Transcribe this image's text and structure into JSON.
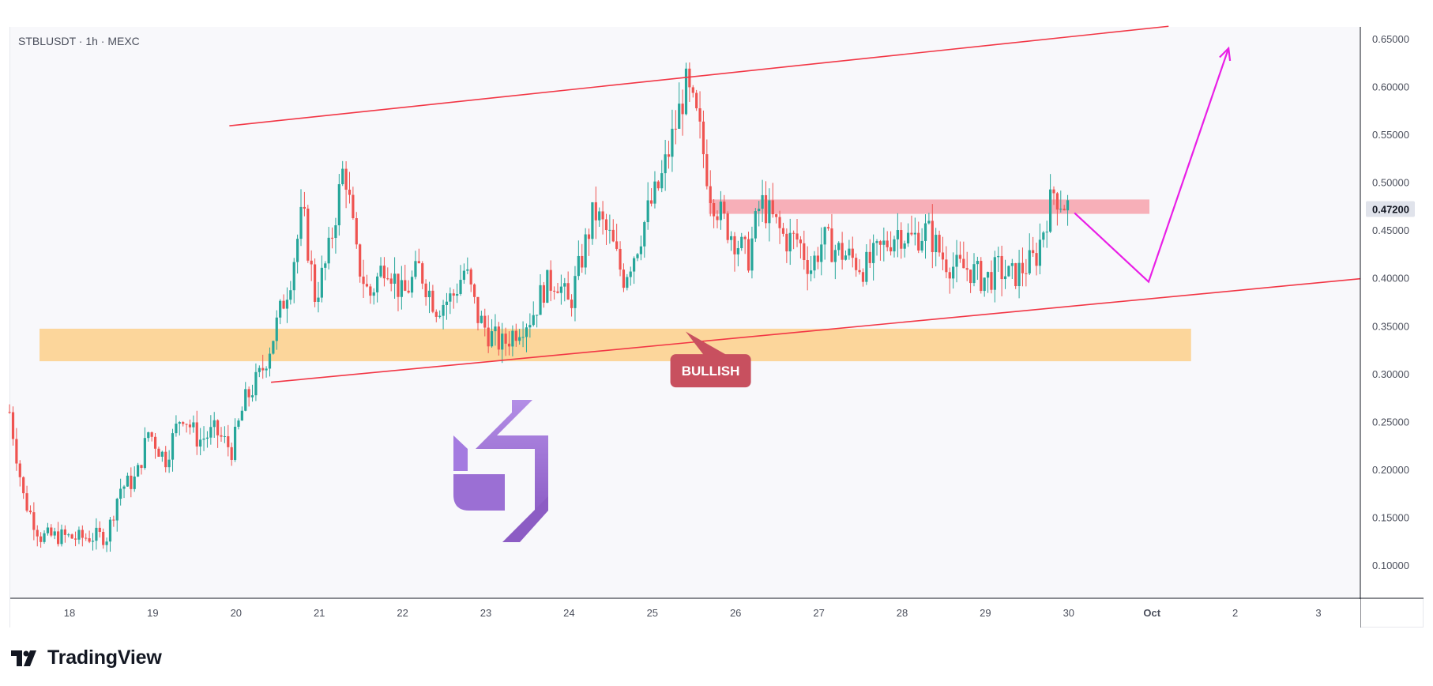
{
  "header": {
    "symbol_title": "STBLUSDT · 1h · MEXC"
  },
  "branding": {
    "tv_logo_icon": "tradingview-logo-icon",
    "tv_name": "TradingView"
  },
  "colors": {
    "up_candle": "#26a69a",
    "down_candle": "#ef5350",
    "channel_line": "#f23645",
    "projection_arrow": "#e91fe6",
    "resistance_zone": "#f7a2ac",
    "support_zone": "#fcd69b",
    "bullish_label_bg": "#c8505f",
    "price_label_bg": "#e0e3eb"
  },
  "chart_data": {
    "type": "candlestick",
    "x_ticks": [
      "18",
      "19",
      "20",
      "21",
      "22",
      "23",
      "24",
      "25",
      "26",
      "27",
      "28",
      "29",
      "30",
      "Oct",
      "2",
      "3"
    ],
    "y_ticks": [
      "0.10000",
      "0.15000",
      "0.20000",
      "0.25000",
      "0.30000",
      "0.35000",
      "0.40000",
      "0.45000",
      "0.50000",
      "0.55000",
      "0.60000",
      "0.65000"
    ],
    "ylim": [
      0.05,
      0.67
    ],
    "x_unit": "day index (0 = Sep 18)",
    "current_price": "0.47200",
    "price_path": [
      [
        -0.72,
        0.26
      ],
      [
        -0.55,
        0.17
      ],
      [
        -0.35,
        0.13
      ],
      [
        -0.1,
        0.13
      ],
      [
        0.1,
        0.128
      ],
      [
        0.3,
        0.13
      ],
      [
        0.45,
        0.13
      ],
      [
        0.6,
        0.18
      ],
      [
        0.8,
        0.19
      ],
      [
        0.95,
        0.24
      ],
      [
        1.15,
        0.21
      ],
      [
        1.35,
        0.26
      ],
      [
        1.55,
        0.23
      ],
      [
        1.75,
        0.24
      ],
      [
        1.95,
        0.22
      ],
      [
        2.1,
        0.27
      ],
      [
        2.3,
        0.3
      ],
      [
        2.45,
        0.34
      ],
      [
        2.65,
        0.4
      ],
      [
        2.8,
        0.47
      ],
      [
        2.95,
        0.38
      ],
      [
        3.1,
        0.42
      ],
      [
        3.3,
        0.52
      ],
      [
        3.45,
        0.42
      ],
      [
        3.6,
        0.38
      ],
      [
        3.8,
        0.42
      ],
      [
        4.0,
        0.38
      ],
      [
        4.2,
        0.41
      ],
      [
        4.4,
        0.37
      ],
      [
        4.6,
        0.38
      ],
      [
        4.75,
        0.41
      ],
      [
        4.9,
        0.36
      ],
      [
        5.05,
        0.34
      ],
      [
        5.2,
        0.33
      ],
      [
        5.4,
        0.35
      ],
      [
        5.55,
        0.36
      ],
      [
        5.7,
        0.39
      ],
      [
        5.85,
        0.4
      ],
      [
        6.0,
        0.37
      ],
      [
        6.15,
        0.42
      ],
      [
        6.3,
        0.47
      ],
      [
        6.5,
        0.44
      ],
      [
        6.65,
        0.4
      ],
      [
        6.8,
        0.43
      ],
      [
        6.95,
        0.47
      ],
      [
        7.1,
        0.5
      ],
      [
        7.25,
        0.55
      ],
      [
        7.4,
        0.6
      ],
      [
        7.55,
        0.56
      ],
      [
        7.7,
        0.49
      ],
      [
        7.85,
        0.46
      ],
      [
        8.0,
        0.44
      ],
      [
        8.15,
        0.42
      ],
      [
        8.3,
        0.48
      ],
      [
        8.45,
        0.46
      ],
      [
        8.6,
        0.44
      ],
      [
        8.75,
        0.44
      ],
      [
        8.9,
        0.41
      ],
      [
        9.05,
        0.44
      ],
      [
        9.2,
        0.43
      ],
      [
        9.4,
        0.42
      ],
      [
        9.55,
        0.41
      ],
      [
        9.75,
        0.43
      ],
      [
        9.95,
        0.45
      ],
      [
        10.1,
        0.44
      ],
      [
        10.3,
        0.45
      ],
      [
        10.5,
        0.42
      ],
      [
        10.65,
        0.41
      ],
      [
        10.8,
        0.41
      ],
      [
        10.95,
        0.4
      ],
      [
        11.05,
        0.4
      ],
      [
        11.15,
        0.41
      ],
      [
        11.3,
        0.4
      ],
      [
        11.45,
        0.41
      ],
      [
        11.6,
        0.42
      ],
      [
        11.72,
        0.46
      ],
      [
        11.82,
        0.49
      ],
      [
        11.92,
        0.48
      ],
      [
        12.0,
        0.474
      ]
    ],
    "zones": [
      {
        "type": "resistance",
        "x_start": 7.68,
        "x_end": 12.97,
        "y_low": 0.467,
        "y_high": 0.482
      },
      {
        "type": "support",
        "x_start": -0.36,
        "x_end": 13.47,
        "y_low": 0.313,
        "y_high": 0.347
      }
    ],
    "channel_lines": [
      {
        "from": [
          1.92,
          0.559
        ],
        "to": [
          13.2,
          0.663
        ]
      },
      {
        "from": [
          2.42,
          0.291
        ],
        "to": [
          15.6,
          0.4
        ]
      }
    ],
    "projection_path": [
      [
        12.07,
        0.468
      ],
      [
        12.96,
        0.396
      ],
      [
        13.92,
        0.64
      ]
    ],
    "annotations": [
      {
        "text": "BULLISH",
        "x": 7.7,
        "y": 0.303,
        "pointer_to": [
          7.4,
          0.344
        ]
      }
    ]
  }
}
